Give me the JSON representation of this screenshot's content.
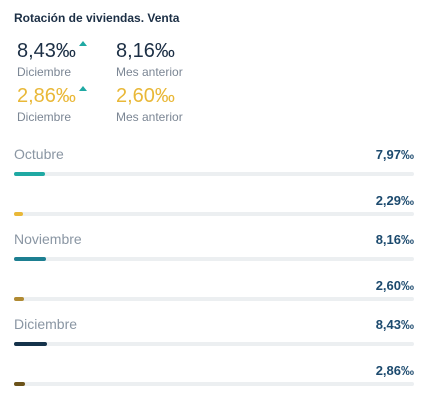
{
  "title": "Rotación de viviendas. Venta",
  "kpis": {
    "k1": {
      "value": "8,43‰",
      "label": "Diciembre",
      "color": "#1c2f45"
    },
    "k2": {
      "value": "8,16‰",
      "label": "Mes anterior",
      "color": "#1c2f45"
    },
    "k3": {
      "value": "2,86‰",
      "label": "Diciembre",
      "color": "#e9b838"
    },
    "k4": {
      "value": "2,60‰",
      "label": "Mes anterior",
      "color": "#e9b838"
    }
  },
  "rows": [
    {
      "label": "Octubre",
      "value": "7,97‰",
      "fraction": 0.077,
      "color": "#1fa9a3"
    },
    {
      "label": "",
      "value": "2,29‰",
      "fraction": 0.022,
      "color": "#e9b838"
    },
    {
      "label": "Noviembre",
      "value": "8,16‰",
      "fraction": 0.079,
      "color": "#1d7f91"
    },
    {
      "label": "",
      "value": "2,60‰",
      "fraction": 0.025,
      "color": "#b08a32"
    },
    {
      "label": "Diciembre",
      "value": "8,43‰",
      "fraction": 0.082,
      "color": "#14324a"
    },
    {
      "label": "",
      "value": "2,86‰",
      "fraction": 0.027,
      "color": "#6b5219"
    }
  ],
  "arrow_color": "#1fa9a3"
}
